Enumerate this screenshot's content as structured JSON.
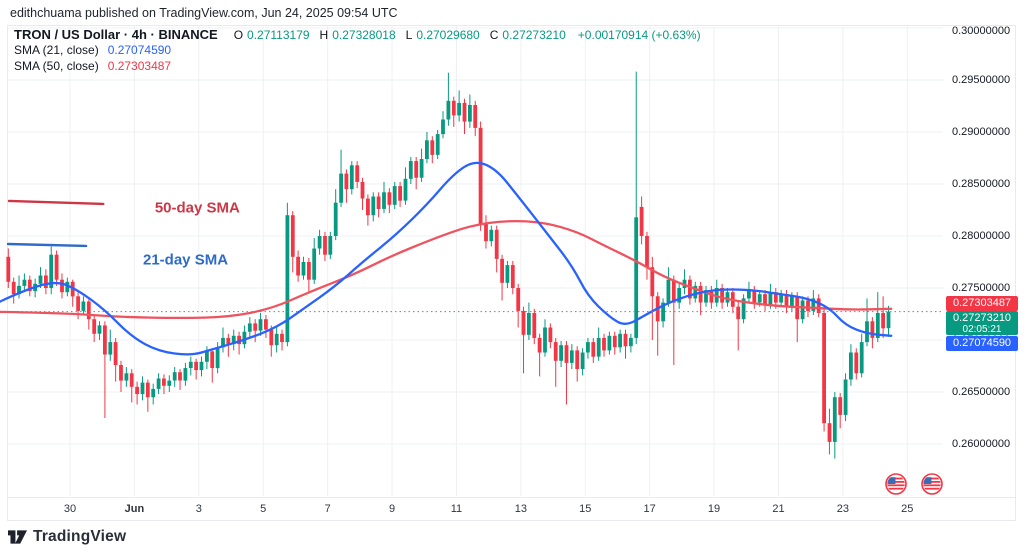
{
  "header": {
    "attribution": "edithchuama published on TradingView.com, Jun 24, 2025 09:54 UTC"
  },
  "legend": {
    "symbol_line": "TRON / US Dollar · 4h · BINANCE",
    "ohlc": {
      "o_label": "O",
      "o_value": "0.27113179",
      "h_label": "H",
      "h_value": "0.27328018",
      "l_label": "L",
      "l_value": "0.27029680",
      "c_label": "C",
      "c_value": "0.27273210",
      "change": "+0.00170914 (+0.63%)"
    },
    "sma21": {
      "label": "SMA (21, close)",
      "value": "0.27074590"
    },
    "sma50": {
      "label": "SMA (50, close)",
      "value": "0.27303487"
    }
  },
  "price_tags": {
    "sma50": "0.27303487",
    "last": {
      "price": "0.27273210",
      "countdown": "02:05:21"
    },
    "sma21": "0.27074590"
  },
  "footer": {
    "logo_text": "TradingView"
  },
  "colors": {
    "up": "#089981",
    "down": "#F23645",
    "sma21_line": "#2962FF",
    "sma50_line": "#EE5460",
    "grid": "#eef0f4",
    "dotted_price_line": "#5A8CA8",
    "axis_text": "#131722",
    "tag_red_bg": "#F23645",
    "tag_green_bg": "#089981",
    "tag_blue_bg": "#2962FF",
    "annotation_red": "#CC3746",
    "annotation_blue": "#2E6BC9"
  },
  "chart_data": {
    "type": "candlestick",
    "title": "TRON / US Dollar · 4h · BINANCE",
    "interval_hours": 4,
    "last_price": 0.2727321,
    "y_axis": {
      "min": 0.2549,
      "max": 0.3003,
      "ticks": [
        0.3,
        0.295,
        0.29,
        0.285,
        0.28,
        0.275,
        0.27,
        0.265,
        0.26
      ],
      "labels": [
        "0.30000000",
        "0.29500000",
        "0.29000000",
        "0.28500000",
        "0.28000000",
        "0.27500000",
        "0.27000000",
        "0.26500000",
        "0.26000000"
      ]
    },
    "x_axis": {
      "start": "May 28 00:00",
      "ticks": [
        {
          "label": "30",
          "day": 2,
          "bold": false
        },
        {
          "label": "Jun",
          "day": 4,
          "bold": true
        },
        {
          "label": "3",
          "day": 6,
          "bold": false
        },
        {
          "label": "5",
          "day": 8,
          "bold": false
        },
        {
          "label": "7",
          "day": 10,
          "bold": false
        },
        {
          "label": "9",
          "day": 12,
          "bold": false
        },
        {
          "label": "11",
          "day": 14,
          "bold": false
        },
        {
          "label": "13",
          "day": 16,
          "bold": false
        },
        {
          "label": "15",
          "day": 18,
          "bold": false
        },
        {
          "label": "17",
          "day": 20,
          "bold": false
        },
        {
          "label": "19",
          "day": 22,
          "bold": false
        },
        {
          "label": "21",
          "day": 24,
          "bold": false
        },
        {
          "label": "23",
          "day": 26,
          "bold": false
        },
        {
          "label": "25",
          "day": 28,
          "bold": false
        }
      ]
    },
    "candles": [
      [
        0.278,
        0.2788,
        0.275,
        0.2756
      ],
      [
        0.2756,
        0.276,
        0.2735,
        0.2744
      ],
      [
        0.2744,
        0.2762,
        0.274,
        0.2752
      ],
      [
        0.2752,
        0.2764,
        0.2748,
        0.2758
      ],
      [
        0.2758,
        0.2762,
        0.2742,
        0.2747
      ],
      [
        0.2747,
        0.2759,
        0.2741,
        0.2754
      ],
      [
        0.2754,
        0.277,
        0.275,
        0.2762
      ],
      [
        0.2762,
        0.2768,
        0.2744,
        0.275
      ],
      [
        0.275,
        0.279,
        0.2744,
        0.2782
      ],
      [
        0.2782,
        0.2786,
        0.2752,
        0.2758
      ],
      [
        0.2758,
        0.2764,
        0.274,
        0.2746
      ],
      [
        0.2746,
        0.276,
        0.2742,
        0.2756
      ],
      [
        0.2756,
        0.2758,
        0.2732,
        0.2742
      ],
      [
        0.2742,
        0.2746,
        0.272,
        0.2728
      ],
      [
        0.2728,
        0.2742,
        0.2724,
        0.2737
      ],
      [
        0.2737,
        0.2739,
        0.271,
        0.272
      ],
      [
        0.272,
        0.2724,
        0.2698,
        0.2706
      ],
      [
        0.2706,
        0.2718,
        0.27,
        0.2714
      ],
      [
        0.2714,
        0.2718,
        0.2625,
        0.2686
      ],
      [
        0.2686,
        0.271,
        0.268,
        0.2698
      ],
      [
        0.2698,
        0.2702,
        0.266,
        0.2676
      ],
      [
        0.2676,
        0.268,
        0.265,
        0.2661
      ],
      [
        0.2661,
        0.2674,
        0.2655,
        0.2668
      ],
      [
        0.2668,
        0.2672,
        0.264,
        0.2655
      ],
      [
        0.2655,
        0.266,
        0.2638,
        0.2648
      ],
      [
        0.2648,
        0.2665,
        0.2642,
        0.2659
      ],
      [
        0.2659,
        0.2662,
        0.2631,
        0.2645
      ],
      [
        0.2645,
        0.2658,
        0.2638,
        0.2653
      ],
      [
        0.2653,
        0.2668,
        0.2648,
        0.2663
      ],
      [
        0.2663,
        0.2667,
        0.2648,
        0.2656
      ],
      [
        0.2656,
        0.2666,
        0.265,
        0.2661
      ],
      [
        0.2661,
        0.2674,
        0.2655,
        0.2669
      ],
      [
        0.2669,
        0.2672,
        0.2652,
        0.2661
      ],
      [
        0.2661,
        0.2678,
        0.2656,
        0.2673
      ],
      [
        0.2673,
        0.2684,
        0.2666,
        0.2679
      ],
      [
        0.2679,
        0.2682,
        0.2662,
        0.2671
      ],
      [
        0.2671,
        0.2684,
        0.2665,
        0.2679
      ],
      [
        0.2679,
        0.2694,
        0.2672,
        0.2689
      ],
      [
        0.2689,
        0.2692,
        0.2659,
        0.2673
      ],
      [
        0.2673,
        0.2698,
        0.2668,
        0.2693
      ],
      [
        0.2693,
        0.2712,
        0.2688,
        0.2702
      ],
      [
        0.2702,
        0.2706,
        0.2684,
        0.2696
      ],
      [
        0.2696,
        0.271,
        0.269,
        0.2704
      ],
      [
        0.2704,
        0.2708,
        0.2686,
        0.2696
      ],
      [
        0.2696,
        0.2714,
        0.2692,
        0.2708
      ],
      [
        0.2708,
        0.2722,
        0.2702,
        0.2716
      ],
      [
        0.2716,
        0.272,
        0.2698,
        0.2709
      ],
      [
        0.2709,
        0.2726,
        0.2704,
        0.272
      ],
      [
        0.272,
        0.2724,
        0.2702,
        0.271
      ],
      [
        0.271,
        0.2714,
        0.2684,
        0.2695
      ],
      [
        0.2695,
        0.2712,
        0.2688,
        0.2706
      ],
      [
        0.2706,
        0.271,
        0.269,
        0.2698
      ],
      [
        0.2698,
        0.2832,
        0.2694,
        0.282
      ],
      [
        0.282,
        0.2824,
        0.2765,
        0.278
      ],
      [
        0.278,
        0.2786,
        0.2756,
        0.2762
      ],
      [
        0.2762,
        0.278,
        0.2758,
        0.2775
      ],
      [
        0.2775,
        0.2779,
        0.2746,
        0.2758
      ],
      [
        0.2758,
        0.2798,
        0.2754,
        0.2788
      ],
      [
        0.2788,
        0.2806,
        0.2782,
        0.28
      ],
      [
        0.28,
        0.2804,
        0.2776,
        0.2782
      ],
      [
        0.2782,
        0.2804,
        0.2778,
        0.28
      ],
      [
        0.28,
        0.2845,
        0.2796,
        0.2832
      ],
      [
        0.2832,
        0.2883,
        0.2828,
        0.286
      ],
      [
        0.286,
        0.2864,
        0.2832,
        0.2845
      ],
      [
        0.2845,
        0.2872,
        0.284,
        0.2868
      ],
      [
        0.2868,
        0.2872,
        0.2846,
        0.2852
      ],
      [
        0.2852,
        0.2856,
        0.2825,
        0.2836
      ],
      [
        0.2836,
        0.284,
        0.281,
        0.282
      ],
      [
        0.282,
        0.2842,
        0.2814,
        0.2838
      ],
      [
        0.2838,
        0.2842,
        0.2818,
        0.2826
      ],
      [
        0.2826,
        0.2852,
        0.2822,
        0.2842
      ],
      [
        0.2842,
        0.2846,
        0.2822,
        0.283
      ],
      [
        0.283,
        0.2852,
        0.2826,
        0.2848
      ],
      [
        0.2848,
        0.2852,
        0.2828,
        0.2834
      ],
      [
        0.2834,
        0.2866,
        0.283,
        0.2855
      ],
      [
        0.2855,
        0.2876,
        0.285,
        0.2872
      ],
      [
        0.2872,
        0.2876,
        0.2845,
        0.2856
      ],
      [
        0.2856,
        0.2884,
        0.2852,
        0.2874
      ],
      [
        0.2874,
        0.29,
        0.287,
        0.2892
      ],
      [
        0.2892,
        0.2896,
        0.287,
        0.2878
      ],
      [
        0.2878,
        0.2902,
        0.2874,
        0.2898
      ],
      [
        0.2898,
        0.292,
        0.2894,
        0.2912
      ],
      [
        0.2912,
        0.2957,
        0.2906,
        0.293
      ],
      [
        0.293,
        0.2934,
        0.2905,
        0.2916
      ],
      [
        0.2916,
        0.294,
        0.291,
        0.2928
      ],
      [
        0.2928,
        0.2932,
        0.2898,
        0.291
      ],
      [
        0.291,
        0.2936,
        0.2904,
        0.2926
      ],
      [
        0.2926,
        0.293,
        0.2896,
        0.2904
      ],
      [
        0.2904,
        0.291,
        0.2805,
        0.2812
      ],
      [
        0.2812,
        0.282,
        0.2788,
        0.2795
      ],
      [
        0.2795,
        0.281,
        0.279,
        0.2806
      ],
      [
        0.2806,
        0.281,
        0.2765,
        0.2778
      ],
      [
        0.2778,
        0.2782,
        0.2738,
        0.2755
      ],
      [
        0.2755,
        0.2776,
        0.275,
        0.2772
      ],
      [
        0.2772,
        0.2776,
        0.2744,
        0.275
      ],
      [
        0.275,
        0.2754,
        0.2712,
        0.2728
      ],
      [
        0.2728,
        0.2732,
        0.2668,
        0.2705
      ],
      [
        0.2705,
        0.2736,
        0.27,
        0.2726
      ],
      [
        0.2726,
        0.273,
        0.2696,
        0.2702
      ],
      [
        0.2702,
        0.2706,
        0.2665,
        0.2688
      ],
      [
        0.2688,
        0.272,
        0.2684,
        0.2712
      ],
      [
        0.2712,
        0.2716,
        0.2692,
        0.2698
      ],
      [
        0.2698,
        0.2702,
        0.2655,
        0.268
      ],
      [
        0.268,
        0.2699,
        0.2674,
        0.2695
      ],
      [
        0.2695,
        0.2699,
        0.2638,
        0.2678
      ],
      [
        0.2678,
        0.2696,
        0.2672,
        0.269
      ],
      [
        0.269,
        0.2694,
        0.266,
        0.2672
      ],
      [
        0.2672,
        0.2692,
        0.2666,
        0.2688
      ],
      [
        0.2688,
        0.2702,
        0.2682,
        0.2698
      ],
      [
        0.2698,
        0.2702,
        0.2678,
        0.2684
      ],
      [
        0.2684,
        0.2712,
        0.268,
        0.2702
      ],
      [
        0.2702,
        0.2706,
        0.2684,
        0.269
      ],
      [
        0.269,
        0.2708,
        0.2686,
        0.2704
      ],
      [
        0.2704,
        0.2708,
        0.2686,
        0.2693
      ],
      [
        0.2693,
        0.271,
        0.2688,
        0.2706
      ],
      [
        0.2706,
        0.271,
        0.2682,
        0.2694
      ],
      [
        0.2694,
        0.2706,
        0.2688,
        0.2702
      ],
      [
        0.2702,
        0.2958,
        0.2696,
        0.2818
      ],
      [
        0.2828,
        0.2838,
        0.2792,
        0.28
      ],
      [
        0.28,
        0.2804,
        0.2758,
        0.277
      ],
      [
        0.277,
        0.278,
        0.27,
        0.2742
      ],
      [
        0.2742,
        0.2746,
        0.2685,
        0.2718
      ],
      [
        0.2718,
        0.274,
        0.2712,
        0.2736
      ],
      [
        0.2736,
        0.277,
        0.2732,
        0.2758
      ],
      [
        0.2758,
        0.2762,
        0.2676,
        0.2736
      ],
      [
        0.2736,
        0.2754,
        0.273,
        0.275
      ],
      [
        0.275,
        0.2768,
        0.2744,
        0.2758
      ],
      [
        0.2758,
        0.2762,
        0.2734,
        0.274
      ],
      [
        0.274,
        0.2756,
        0.2736,
        0.2752
      ],
      [
        0.2752,
        0.2756,
        0.2724,
        0.2736
      ],
      [
        0.2736,
        0.2752,
        0.2732,
        0.2748
      ],
      [
        0.2748,
        0.2752,
        0.273,
        0.2736
      ],
      [
        0.2736,
        0.2758,
        0.2732,
        0.275
      ],
      [
        0.275,
        0.2754,
        0.273,
        0.2736
      ],
      [
        0.2736,
        0.275,
        0.2732,
        0.2746
      ],
      [
        0.2746,
        0.275,
        0.2726,
        0.2732
      ],
      [
        0.2732,
        0.2738,
        0.269,
        0.272
      ],
      [
        0.272,
        0.2744,
        0.2716,
        0.274
      ],
      [
        0.274,
        0.2756,
        0.2736,
        0.2748
      ],
      [
        0.2748,
        0.2752,
        0.273,
        0.2736
      ],
      [
        0.2736,
        0.2748,
        0.2732,
        0.2744
      ],
      [
        0.2744,
        0.2748,
        0.2728,
        0.2734
      ],
      [
        0.2734,
        0.2754,
        0.273,
        0.2746
      ],
      [
        0.2746,
        0.275,
        0.273,
        0.2736
      ],
      [
        0.2736,
        0.2748,
        0.2732,
        0.2744
      ],
      [
        0.2744,
        0.2748,
        0.2726,
        0.2732
      ],
      [
        0.2732,
        0.2746,
        0.2728,
        0.2742
      ],
      [
        0.2742,
        0.2746,
        0.2698,
        0.272
      ],
      [
        0.272,
        0.2742,
        0.2716,
        0.2738
      ],
      [
        0.2738,
        0.2742,
        0.2722,
        0.2728
      ],
      [
        0.2728,
        0.2748,
        0.2724,
        0.274
      ],
      [
        0.274,
        0.2744,
        0.2722,
        0.2726
      ],
      [
        0.2726,
        0.2732,
        0.2612,
        0.262
      ],
      [
        0.262,
        0.2634,
        0.259,
        0.2602
      ],
      [
        0.2602,
        0.265,
        0.2586,
        0.2645
      ],
      [
        0.2645,
        0.2649,
        0.2615,
        0.2628
      ],
      [
        0.2628,
        0.2668,
        0.2622,
        0.2662
      ],
      [
        0.2662,
        0.2696,
        0.2656,
        0.2688
      ],
      [
        0.2688,
        0.2692,
        0.2662,
        0.2668
      ],
      [
        0.2668,
        0.2706,
        0.2664,
        0.2698
      ],
      [
        0.2698,
        0.274,
        0.2694,
        0.2718
      ],
      [
        0.2718,
        0.2722,
        0.2692,
        0.2702
      ],
      [
        0.2702,
        0.2746,
        0.2698,
        0.2726
      ],
      [
        0.2726,
        0.2742,
        0.2702,
        0.27113
      ],
      [
        0.27113,
        0.27328,
        0.2703,
        0.27273
      ]
    ],
    "sma21_points": [
      [
        -1.5,
        0.2737
      ],
      [
        3,
        0.2748
      ],
      [
        9,
        0.2757
      ],
      [
        13,
        0.2748
      ],
      [
        18,
        0.2729
      ],
      [
        23,
        0.2703
      ],
      [
        28,
        0.2689
      ],
      [
        34,
        0.2685
      ],
      [
        38,
        0.2691
      ],
      [
        44,
        0.27
      ],
      [
        50,
        0.2712
      ],
      [
        55,
        0.273
      ],
      [
        61,
        0.2752
      ],
      [
        66,
        0.2775
      ],
      [
        72,
        0.28
      ],
      [
        78,
        0.283
      ],
      [
        83,
        0.286
      ],
      [
        87,
        0.2873
      ],
      [
        91,
        0.2864
      ],
      [
        95,
        0.2838
      ],
      [
        100,
        0.2805
      ],
      [
        105,
        0.2772
      ],
      [
        108,
        0.2742
      ],
      [
        112,
        0.2722
      ],
      [
        115,
        0.2713
      ],
      [
        119,
        0.2725
      ],
      [
        123,
        0.2736
      ],
      [
        128,
        0.2745
      ],
      [
        133,
        0.2749
      ],
      [
        139,
        0.2748
      ],
      [
        144,
        0.2744
      ],
      [
        149,
        0.274
      ],
      [
        153,
        0.2731
      ],
      [
        156,
        0.2714
      ],
      [
        160,
        0.2706
      ],
      [
        164.5,
        0.2704
      ]
    ],
    "sma50_points": [
      [
        -1.5,
        0.2727
      ],
      [
        10,
        0.2726
      ],
      [
        21,
        0.2722
      ],
      [
        32,
        0.2721
      ],
      [
        41,
        0.2722
      ],
      [
        49,
        0.273
      ],
      [
        56,
        0.2746
      ],
      [
        64,
        0.2762
      ],
      [
        71,
        0.278
      ],
      [
        79,
        0.2797
      ],
      [
        86,
        0.281
      ],
      [
        93,
        0.2815
      ],
      [
        100,
        0.2813
      ],
      [
        106,
        0.2804
      ],
      [
        111,
        0.2791
      ],
      [
        117,
        0.2776
      ],
      [
        122,
        0.2761
      ],
      [
        128,
        0.2749
      ],
      [
        133,
        0.274
      ],
      [
        139,
        0.2735
      ],
      [
        145,
        0.2732
      ],
      [
        150,
        0.2731
      ],
      [
        157,
        0.2729
      ],
      [
        164.5,
        0.273
      ]
    ],
    "annotations": {
      "lines": [
        {
          "name": "sma50-pointer-line",
          "color_key": "annotation_red",
          "x1": 0.13,
          "p1": 0.28337,
          "x2": 17.7,
          "p2": 0.28308
        },
        {
          "name": "sma21-pointer-line",
          "color_key": "annotation_blue",
          "x1": -1.3,
          "p1": 0.27923,
          "x2": 14.5,
          "p2": 0.27904
        }
      ],
      "labels": [
        {
          "name": "sma50-annotation-label",
          "text": "50-day SMA",
          "bar": 27.3,
          "price": 0.28274,
          "color_key": "annotation_red"
        },
        {
          "name": "sma21-annotation-label",
          "text": "21-day SMA",
          "bar": 25.1,
          "price": 0.27774,
          "color_key": "annotation_blue"
        }
      ]
    },
    "events": [
      {
        "icon": "us-flag-icon",
        "day": 27.65
      },
      {
        "icon": "us-flag-icon",
        "day": 28.77
      }
    ]
  }
}
